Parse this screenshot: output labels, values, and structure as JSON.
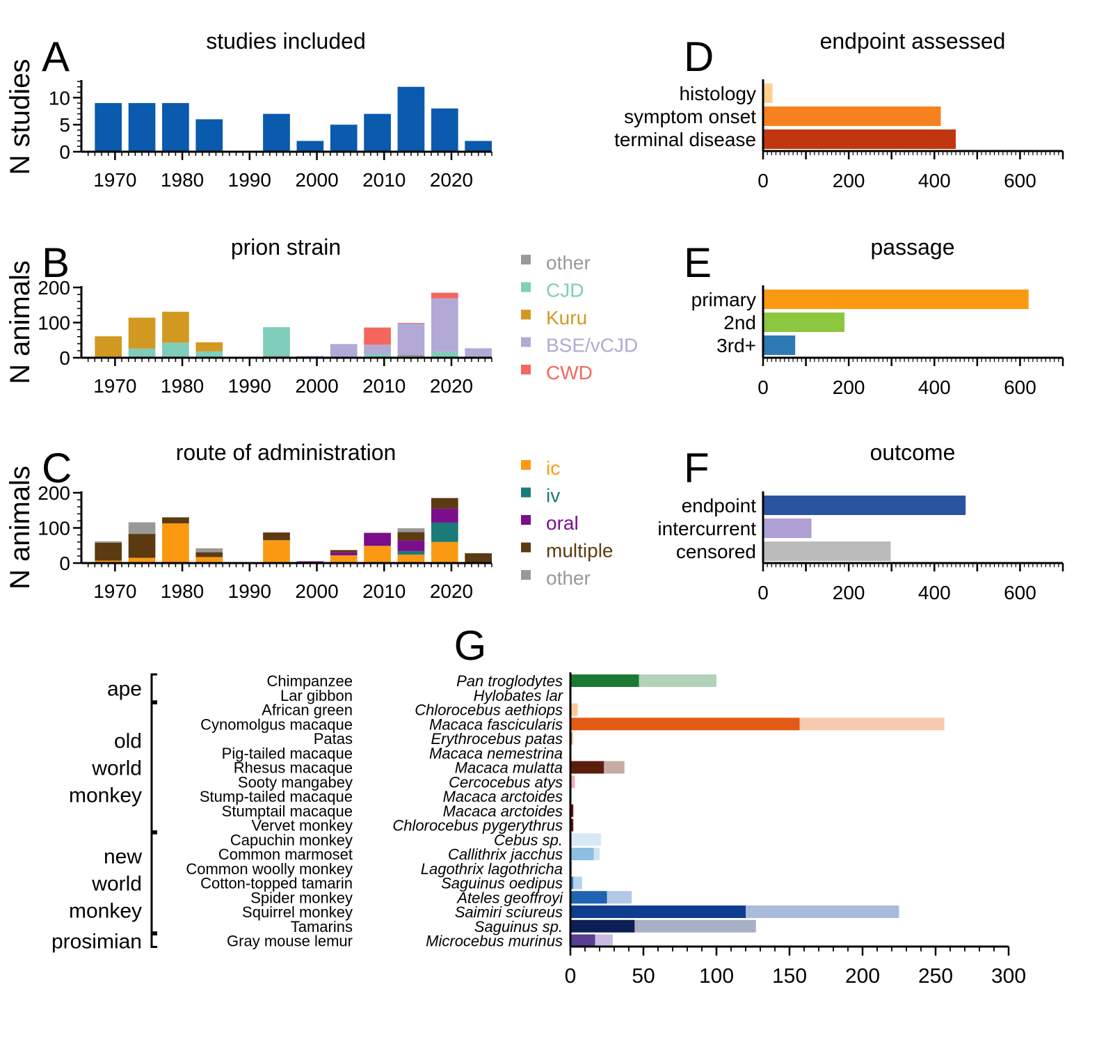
{
  "chart_data": [
    {
      "panel": "A",
      "type": "bar",
      "title": "studies included",
      "ylabel": "N studies",
      "xlabel": "",
      "x": [
        1969,
        1974,
        1979,
        1984,
        1989,
        1994,
        1999,
        2004,
        2009,
        2014,
        2019,
        2024
      ],
      "values": [
        9,
        9,
        9,
        6,
        0,
        7,
        2,
        5,
        7,
        12,
        8,
        2
      ],
      "color": "#0a5aad",
      "xticks": [
        1970,
        1980,
        1990,
        2000,
        2010,
        2020
      ],
      "yticks": [
        0,
        5,
        10
      ],
      "xlim": [
        1965,
        2026
      ],
      "ylim": [
        0,
        13
      ]
    },
    {
      "panel": "B",
      "type": "bar",
      "stacked": true,
      "title": "prion strain",
      "ylabel": "N animals",
      "x": [
        1969,
        1974,
        1979,
        1984,
        1989,
        1994,
        1999,
        2004,
        2009,
        2014,
        2019,
        2024
      ],
      "series": [
        {
          "name": "other",
          "color": "#999999",
          "values": [
            0,
            0,
            0,
            3,
            2,
            5,
            0,
            3,
            3,
            8,
            0,
            0
          ]
        },
        {
          "name": "CJD",
          "color": "#7fcdbb",
          "values": [
            0,
            26,
            43,
            15,
            0,
            82,
            0,
            0,
            7,
            0,
            17,
            0
          ]
        },
        {
          "name": "Kuru",
          "color": "#d29922",
          "values": [
            61,
            88,
            88,
            26,
            0,
            0,
            0,
            0,
            0,
            0,
            0,
            0
          ]
        },
        {
          "name": "BSE/vCJD",
          "color": "#b2a9d6",
          "values": [
            0,
            0,
            0,
            0,
            0,
            0,
            5,
            36,
            27,
            89,
            152,
            27
          ]
        },
        {
          "name": "CWD",
          "color": "#f4665e",
          "values": [
            0,
            0,
            0,
            0,
            0,
            0,
            0,
            0,
            49,
            2,
            16,
            0
          ]
        }
      ],
      "xticks": [
        1970,
        1980,
        1990,
        2000,
        2010,
        2020
      ],
      "yticks": [
        0,
        100,
        200
      ],
      "xlim": [
        1965,
        2026
      ],
      "ylim": [
        0,
        200
      ],
      "legend": "right"
    },
    {
      "panel": "C",
      "type": "bar",
      "stacked": true,
      "title": "route of administration",
      "ylabel": "N animals",
      "x": [
        1969,
        1974,
        1979,
        1984,
        1989,
        1994,
        1999,
        2004,
        2009,
        2014,
        2019,
        2024
      ],
      "series": [
        {
          "name": "ic",
          "color": "#fb9a12",
          "values": [
            7,
            15,
            113,
            17,
            0,
            65,
            0,
            22,
            49,
            24,
            60,
            0
          ]
        },
        {
          "name": "iv",
          "color": "#1b7b78",
          "values": [
            0,
            0,
            0,
            0,
            0,
            0,
            0,
            0,
            0,
            10,
            55,
            0
          ]
        },
        {
          "name": "oral",
          "color": "#7b0e8a",
          "values": [
            0,
            0,
            0,
            0,
            0,
            0,
            5,
            9,
            37,
            30,
            40,
            0
          ]
        },
        {
          "name": "multiple",
          "color": "#5c3a12",
          "values": [
            51,
            68,
            17,
            14,
            0,
            22,
            0,
            6,
            0,
            24,
            30,
            28
          ]
        },
        {
          "name": "other",
          "color": "#999999",
          "values": [
            4,
            33,
            0,
            11,
            0,
            0,
            0,
            0,
            0,
            11,
            0,
            0
          ]
        }
      ],
      "xticks": [
        1970,
        1980,
        1990,
        2000,
        2010,
        2020
      ],
      "yticks": [
        0,
        100,
        200
      ],
      "xlim": [
        1965,
        2026
      ],
      "ylim": [
        0,
        200
      ],
      "legend": "right"
    },
    {
      "panel": "D",
      "type": "bar",
      "orientation": "horizontal",
      "title": "endpoint assessed",
      "categories": [
        "histology",
        "symptom onset",
        "terminal disease"
      ],
      "values": [
        22,
        415,
        450
      ],
      "colors": [
        "#fdd18a",
        "#f8811f",
        "#c0370f"
      ],
      "xticks": [
        0,
        200,
        400,
        600
      ],
      "xlim": [
        0,
        700
      ]
    },
    {
      "panel": "E",
      "type": "bar",
      "orientation": "horizontal",
      "title": "passage",
      "categories": [
        "primary",
        "2nd",
        "3rd+"
      ],
      "values": [
        620,
        190,
        75
      ],
      "colors": [
        "#fb9a12",
        "#8dc63f",
        "#2d79b3"
      ],
      "xticks": [
        0,
        200,
        400,
        600
      ],
      "xlim": [
        0,
        700
      ]
    },
    {
      "panel": "F",
      "type": "bar",
      "orientation": "horizontal",
      "title": "outcome",
      "categories": [
        "endpoint",
        "intercurrent",
        "censored"
      ],
      "values": [
        473,
        113,
        298
      ],
      "colors": [
        "#2a54a0",
        "#b09fd3",
        "#bbbbbb"
      ],
      "xticks": [
        0,
        200,
        400,
        600
      ],
      "xlim": [
        0,
        700
      ]
    },
    {
      "panel": "G",
      "type": "bar",
      "orientation": "horizontal",
      "stacked": true,
      "groups": [
        {
          "label": [
            "ape"
          ],
          "from": 0,
          "to": 1
        },
        {
          "label": [
            "old",
            "world",
            "monkey"
          ],
          "from": 2,
          "to": 10
        },
        {
          "label": [
            "new",
            "world",
            "monkey"
          ],
          "from": 11,
          "to": 17
        },
        {
          "label": [
            "prosimian"
          ],
          "from": 18,
          "to": 18
        }
      ],
      "rows": [
        {
          "common": "Chimpanzee",
          "latin": "Pan troglodytes",
          "dark": 47,
          "light": 53,
          "color": "#1a7a33",
          "lightcolor": "#b3d3b8"
        },
        {
          "common": "Lar gibbon",
          "latin": "Hylobates lar",
          "dark": 0,
          "light": 0,
          "color": "#1a7a33",
          "lightcolor": "#b3d3b8"
        },
        {
          "common": "African green",
          "latin": "Chlorocebus aethiops",
          "dark": 0,
          "light": 5,
          "color": "#f8b07a",
          "lightcolor": "#fbc99a"
        },
        {
          "common": "Cynomolgus macaque",
          "latin": "Macaca fascicularis",
          "dark": 157,
          "light": 99,
          "color": "#e35a15",
          "lightcolor": "#f8c9ad"
        },
        {
          "common": "Patas",
          "latin": "Erythrocebus patas",
          "dark": 1,
          "light": 1,
          "color": "#e35a15",
          "lightcolor": "#f8c9ad"
        },
        {
          "common": "Pig-tailed macaque",
          "latin": "Macaca nemestrina",
          "dark": 0,
          "light": 0,
          "color": "#e35a15",
          "lightcolor": "#f8c9ad"
        },
        {
          "common": "Rhesus macaque",
          "latin": "Macaca mulatta",
          "dark": 23,
          "light": 14,
          "color": "#5b1e0d",
          "lightcolor": "#c6aba2"
        },
        {
          "common": "Sooty mangabey",
          "latin": "Cercocebus atys",
          "dark": 0,
          "light": 3,
          "color": "#f48a9a",
          "lightcolor": "#f7a8b3"
        },
        {
          "common": "Stump-tailed macaque",
          "latin": "Macaca arctoides",
          "dark": 0,
          "light": 0,
          "color": "#6b0d18",
          "lightcolor": "#c9a0a5"
        },
        {
          "common": "Stumptail macaque",
          "latin": "Macaca arctoides",
          "dark": 2,
          "light": 0,
          "color": "#6b0d18",
          "lightcolor": "#c9a0a5"
        },
        {
          "common": "Vervet monkey",
          "latin": "Chlorocebus pygerythrus",
          "dark": 2,
          "light": 0,
          "color": "#6b0d18",
          "lightcolor": "#c9a0a5"
        },
        {
          "common": "Capuchin monkey",
          "latin": "Cebus sp.",
          "dark": 0,
          "light": 21,
          "color": "#bcd6ef",
          "lightcolor": "#d9e8f6"
        },
        {
          "common": "Common marmoset",
          "latin": "Callithrix jacchus",
          "dark": 16,
          "light": 4,
          "color": "#8dbfe0",
          "lightcolor": "#cfe2f2"
        },
        {
          "common": "Common woolly monkey",
          "latin": "Lagothrix lagothricha",
          "dark": 1,
          "light": 0,
          "color": "#8dbfe0",
          "lightcolor": "#cfe2f2"
        },
        {
          "common": "Cotton-topped tamarin",
          "latin": "Saguinus oedipus",
          "dark": 2,
          "light": 6,
          "color": "#2f82c3",
          "lightcolor": "#b7d3ec"
        },
        {
          "common": "Spider monkey",
          "latin": "Ateles geoffroyi",
          "dark": 25,
          "light": 17,
          "color": "#1f63b1",
          "lightcolor": "#b3c8e5"
        },
        {
          "common": "Squirrel monkey",
          "latin": "Saimiri sciureus",
          "dark": 120,
          "light": 105,
          "color": "#0f3c8d",
          "lightcolor": "#a9bbd9"
        },
        {
          "common": "Tamarins",
          "latin": "Saguinus sp.",
          "dark": 44,
          "light": 83,
          "color": "#0c1f55",
          "lightcolor": "#a8b0c6"
        },
        {
          "common": "Gray mouse lemur",
          "latin": "Microcebus murinus",
          "dark": 17,
          "light": 12,
          "color": "#5a3d95",
          "lightcolor": "#c8bde0"
        }
      ],
      "xticks": [
        0,
        50,
        100,
        150,
        200,
        250,
        300
      ],
      "xlim": [
        0,
        300
      ]
    }
  ]
}
